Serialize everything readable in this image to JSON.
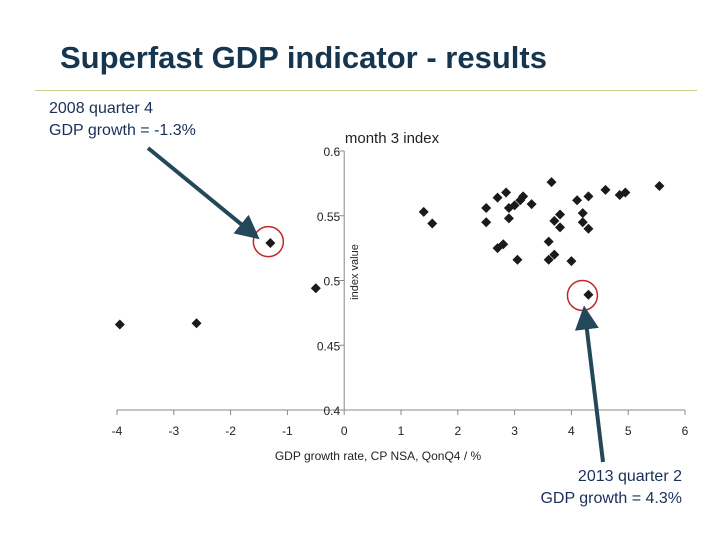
{
  "slide": {
    "title": "Superfast GDP indicator - results"
  },
  "callouts": [
    {
      "line1": "2008 quarter 4",
      "line2": "GDP growth = -1.3%",
      "target": {
        "x": -1.3,
        "y": 0.53
      }
    },
    {
      "line1": "2013 quarter 2",
      "line2": "GDP growth = 4.3%",
      "target": {
        "x": 4.3,
        "y": 0.49
      }
    }
  ],
  "colors": {
    "points": "#1a1a1a",
    "axes": "#888888",
    "arrow": "#24475a",
    "circle": "#c0272d",
    "title": "#16364f",
    "callout_text": "#1a2f5a"
  },
  "chart_data": {
    "type": "scatter",
    "title": "month 3 index",
    "xlabel": "GDP growth rate, CP NSA, QonQ4 / %",
    "ylabel": "index value",
    "xlim": [
      -4,
      6
    ],
    "ylim": [
      0.4,
      0.6
    ],
    "x_ticks": [
      -4,
      -3,
      -2,
      -1,
      0,
      1,
      2,
      3,
      4,
      5,
      6
    ],
    "y_ticks": [
      0.6,
      0.55,
      0.5,
      0.45,
      0.4
    ],
    "y_tick_labels": [
      "0.6",
      "0.55",
      "0.5",
      "0.45",
      "0.4"
    ],
    "grid": false,
    "legend": "none",
    "points": [
      {
        "x": -3.95,
        "y": 0.466
      },
      {
        "x": -2.6,
        "y": 0.467
      },
      {
        "x": -1.3,
        "y": 0.529
      },
      {
        "x": -0.5,
        "y": 0.494
      },
      {
        "x": 1.4,
        "y": 0.553
      },
      {
        "x": 1.55,
        "y": 0.544
      },
      {
        "x": 2.5,
        "y": 0.556
      },
      {
        "x": 2.5,
        "y": 0.545
      },
      {
        "x": 2.7,
        "y": 0.525
      },
      {
        "x": 2.7,
        "y": 0.564
      },
      {
        "x": 2.8,
        "y": 0.528
      },
      {
        "x": 2.85,
        "y": 0.568
      },
      {
        "x": 2.9,
        "y": 0.556
      },
      {
        "x": 2.9,
        "y": 0.548
      },
      {
        "x": 3.0,
        "y": 0.558
      },
      {
        "x": 3.05,
        "y": 0.516
      },
      {
        "x": 3.1,
        "y": 0.562
      },
      {
        "x": 3.15,
        "y": 0.565
      },
      {
        "x": 3.3,
        "y": 0.559
      },
      {
        "x": 3.6,
        "y": 0.53
      },
      {
        "x": 3.6,
        "y": 0.516
      },
      {
        "x": 3.65,
        "y": 0.576
      },
      {
        "x": 3.7,
        "y": 0.52
      },
      {
        "x": 3.7,
        "y": 0.546
      },
      {
        "x": 3.8,
        "y": 0.551
      },
      {
        "x": 3.8,
        "y": 0.541
      },
      {
        "x": 4.0,
        "y": 0.515
      },
      {
        "x": 4.1,
        "y": 0.562
      },
      {
        "x": 4.2,
        "y": 0.545
      },
      {
        "x": 4.2,
        "y": 0.552
      },
      {
        "x": 4.3,
        "y": 0.54
      },
      {
        "x": 4.3,
        "y": 0.489
      },
      {
        "x": 4.3,
        "y": 0.565
      },
      {
        "x": 4.6,
        "y": 0.57
      },
      {
        "x": 4.85,
        "y": 0.566
      },
      {
        "x": 4.95,
        "y": 0.568
      },
      {
        "x": 5.55,
        "y": 0.573
      }
    ]
  }
}
